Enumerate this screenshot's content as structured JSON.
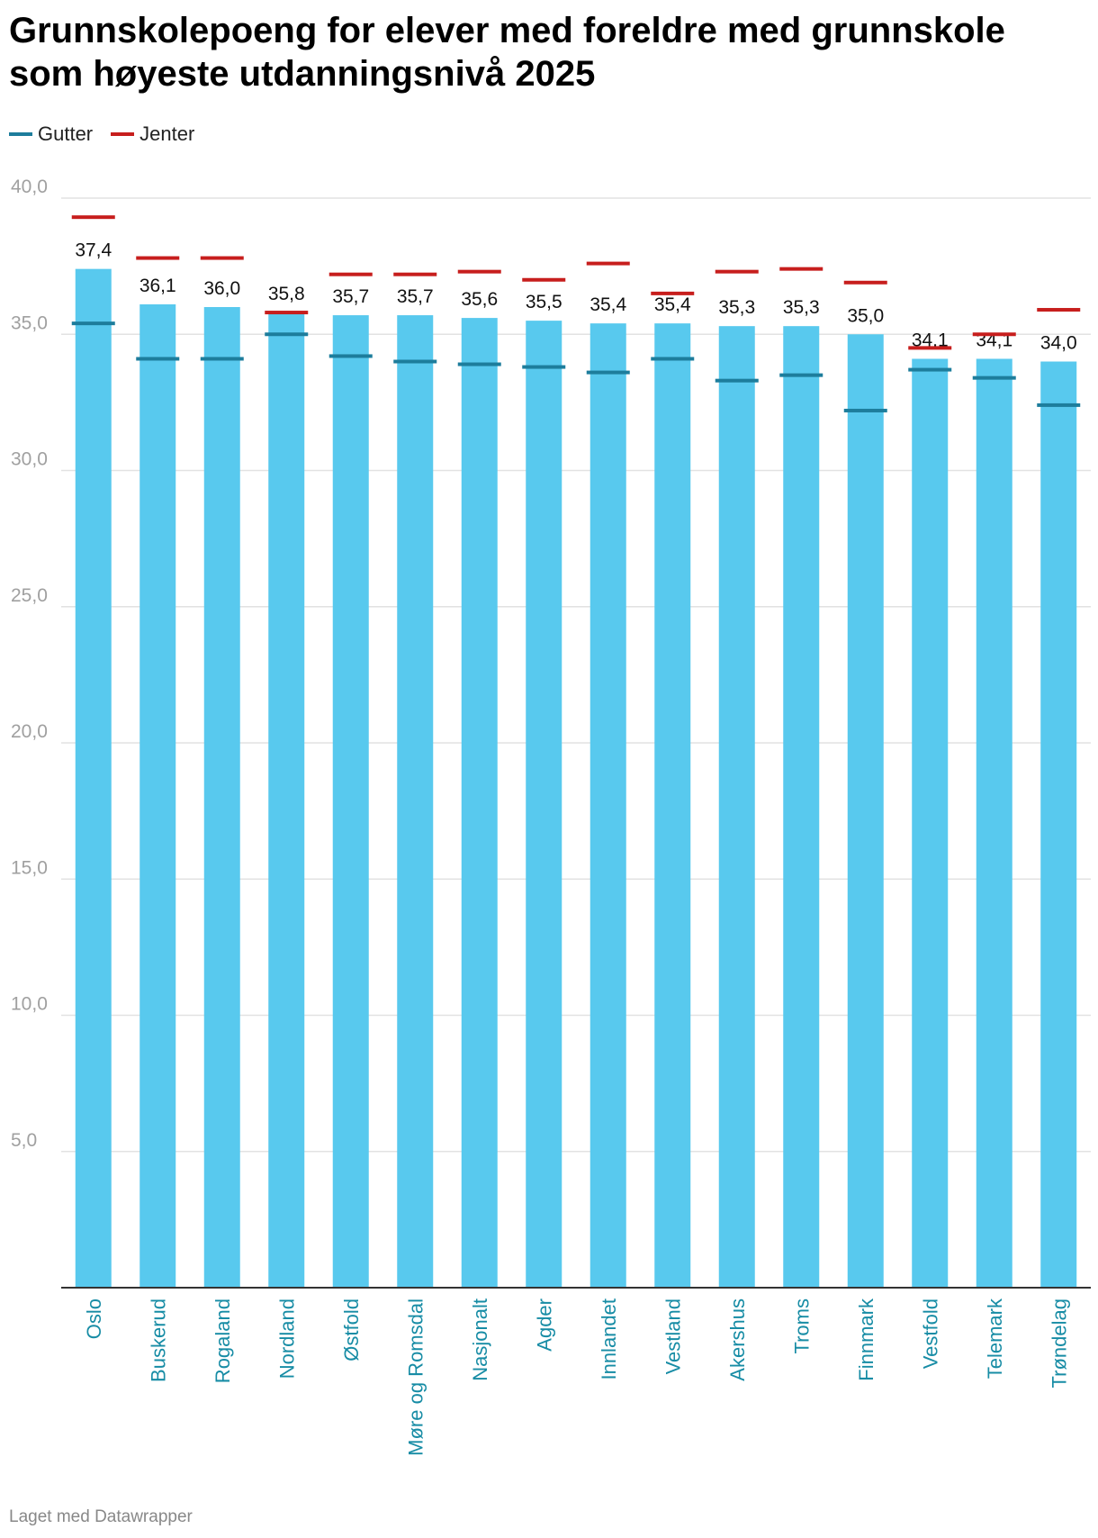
{
  "title": "Grunnskolepoeng for elever med foreldre med grunnskole som høyeste utdanningsnivå 2025",
  "legend": [
    {
      "label": "Gutter",
      "color": "#1d7d9c"
    },
    {
      "label": "Jenter",
      "color": "#c71e1d"
    }
  ],
  "footer": "Laget med Datawrapper",
  "colors": {
    "bar": "#58c9ee",
    "gutter": "#1d7d9c",
    "jenter": "#c71e1d",
    "grid": "#e2e2e2",
    "axis_label": "#a0a0a0",
    "category": "#178ca5"
  },
  "chart_data": {
    "type": "bar",
    "categories": [
      "Oslo",
      "Buskerud",
      "Rogaland",
      "Nordland",
      "Østfold",
      "Møre og Romsdal",
      "Nasjonalt",
      "Agder",
      "Innlandet",
      "Vestland",
      "Akershus",
      "Troms",
      "Finnmark",
      "Vestfold",
      "Telemark",
      "Trøndelag"
    ],
    "values": [
      37.4,
      36.1,
      36.0,
      35.8,
      35.7,
      35.7,
      35.6,
      35.5,
      35.4,
      35.4,
      35.3,
      35.3,
      35.0,
      34.1,
      34.1,
      34.0
    ],
    "value_labels": [
      "37,4",
      "36,1",
      "36,0",
      "35,8",
      "35,7",
      "35,7",
      "35,6",
      "35,5",
      "35,4",
      "35,4",
      "35,3",
      "35,3",
      "35,0",
      "34,1",
      "34,1",
      "34,0"
    ],
    "series": [
      {
        "name": "Gutter",
        "values": [
          35.4,
          34.1,
          34.1,
          35.0,
          34.2,
          34.0,
          33.9,
          33.8,
          33.6,
          34.1,
          33.3,
          33.5,
          32.2,
          33.7,
          33.4,
          32.4
        ]
      },
      {
        "name": "Jenter",
        "values": [
          39.3,
          37.8,
          37.8,
          35.8,
          37.2,
          37.2,
          37.3,
          37.0,
          37.6,
          36.5,
          37.3,
          37.4,
          36.9,
          34.5,
          35.0,
          35.9
        ]
      }
    ],
    "ylim": [
      0,
      40
    ],
    "yticks": [
      "5,0",
      "10,0",
      "15,0",
      "20,0",
      "25,0",
      "30,0",
      "35,0",
      "40,0"
    ],
    "ytick_values": [
      5,
      10,
      15,
      20,
      25,
      30,
      35,
      40
    ],
    "grid": true,
    "xlabel": "",
    "ylabel": ""
  }
}
